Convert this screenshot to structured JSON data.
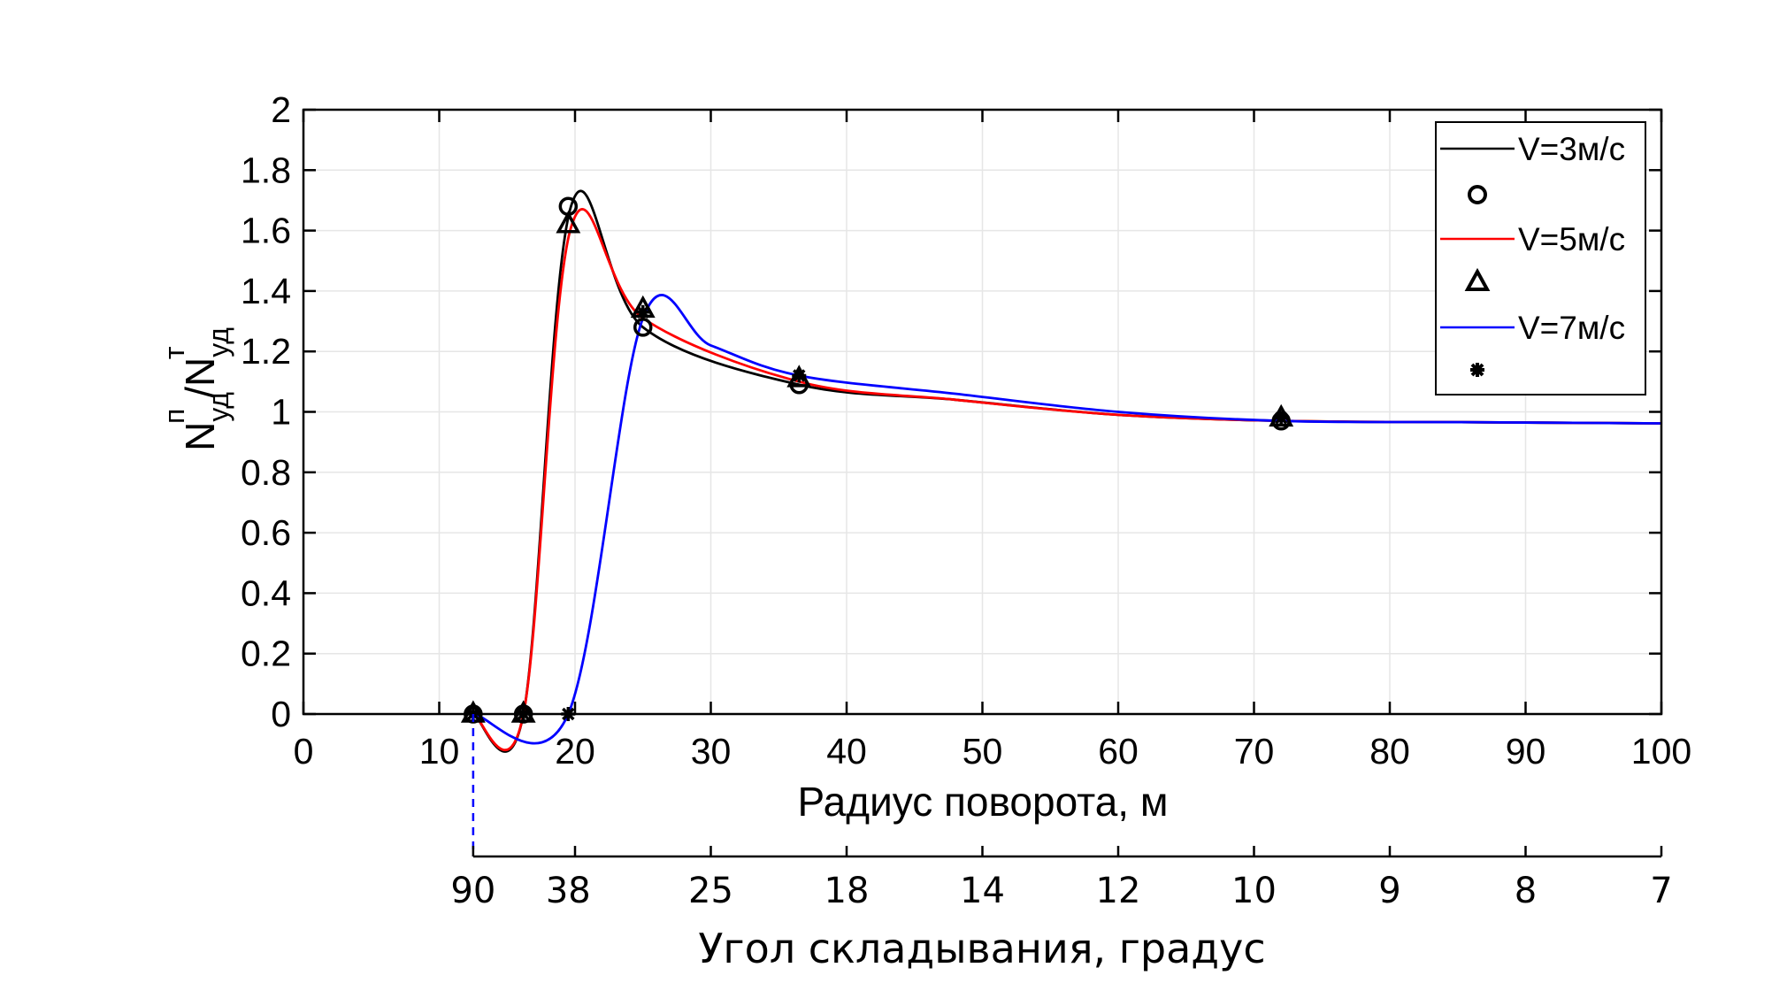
{
  "chart_data": {
    "type": "line",
    "xlabel": "Радиус поворота, м",
    "ylabel": {
      "base1": "N",
      "sup1": "п",
      "sub1": "уд",
      "slash": "/",
      "base2": "N",
      "sup2": "т",
      "sub2": "уд"
    },
    "xlim": [
      0,
      100
    ],
    "ylim": [
      0,
      2
    ],
    "grid": true,
    "legend_position": "top-right",
    "x_ticks": [
      "0",
      "10",
      "20",
      "30",
      "40",
      "50",
      "60",
      "70",
      "80",
      "90",
      "100"
    ],
    "y_ticks": [
      "0",
      "0.2",
      "0.4",
      "0.6",
      "0.8",
      "1",
      "1.2",
      "1.4",
      "1.6",
      "1.8",
      "2"
    ],
    "series": [
      {
        "name": "V=3м/с",
        "color": "#000000",
        "marker": "circle",
        "x": [
          12.5,
          16.2,
          19.7,
          25.0,
          36.5,
          48.0,
          60.0,
          72.0,
          85.0,
          100.0
        ],
        "y": [
          0,
          0,
          1.68,
          1.28,
          1.09,
          1.04,
          0.99,
          0.97,
          0.966,
          0.962
        ],
        "markers": [
          [
            12.5,
            0
          ],
          [
            16.2,
            0
          ],
          [
            19.5,
            1.68
          ],
          [
            25.0,
            1.28
          ],
          [
            36.5,
            1.09
          ],
          [
            72.0,
            0.97
          ]
        ]
      },
      {
        "name": "V=5м/с",
        "color": "#ff0000",
        "marker": "triangle",
        "x": [
          12.5,
          16.2,
          19.7,
          25.0,
          36.5,
          48.0,
          60.0,
          72.0,
          85.0,
          100.0
        ],
        "y": [
          0,
          0,
          1.61,
          1.31,
          1.1,
          1.04,
          0.99,
          0.97,
          0.966,
          0.962
        ],
        "markers": [
          [
            12.5,
            0
          ],
          [
            16.2,
            0
          ],
          [
            19.5,
            1.62
          ],
          [
            25.0,
            1.34
          ],
          [
            36.5,
            1.11
          ],
          [
            72.0,
            0.98
          ]
        ]
      },
      {
        "name": "V=7м/с",
        "color": "#0000ff",
        "marker": "star",
        "x": [
          12.5,
          19.5,
          25.0,
          30.0,
          36.5,
          48.0,
          60.0,
          72.0,
          85.0,
          100.0
        ],
        "y": [
          0,
          0,
          1.31,
          1.22,
          1.12,
          1.06,
          1.0,
          0.97,
          0.966,
          0.962
        ],
        "markers": [
          [
            12.5,
            0
          ],
          [
            16.2,
            0
          ],
          [
            19.5,
            0
          ],
          [
            25.0,
            1.33
          ],
          [
            36.5,
            1.12
          ],
          [
            72.0,
            0.98
          ]
        ]
      }
    ],
    "dashed_marker_x": 12.5,
    "secondary_axis": {
      "title": "Угол складывания, градус",
      "labels": [
        {
          "text": "90",
          "x": 12.5
        },
        {
          "text": "38",
          "x": 19.5
        },
        {
          "text": "25",
          "x": 30.0
        },
        {
          "text": "18",
          "x": 40.0
        },
        {
          "text": "14",
          "x": 50.0
        },
        {
          "text": "12",
          "x": 60.0
        },
        {
          "text": "10",
          "x": 70.0
        },
        {
          "text": "9",
          "x": 80.0
        },
        {
          "text": "8",
          "x": 90.0
        },
        {
          "text": "7",
          "x": 100.0
        }
      ],
      "tick_x": [
        12.5,
        20,
        30,
        40,
        50,
        60,
        70,
        80,
        90,
        100
      ]
    }
  }
}
